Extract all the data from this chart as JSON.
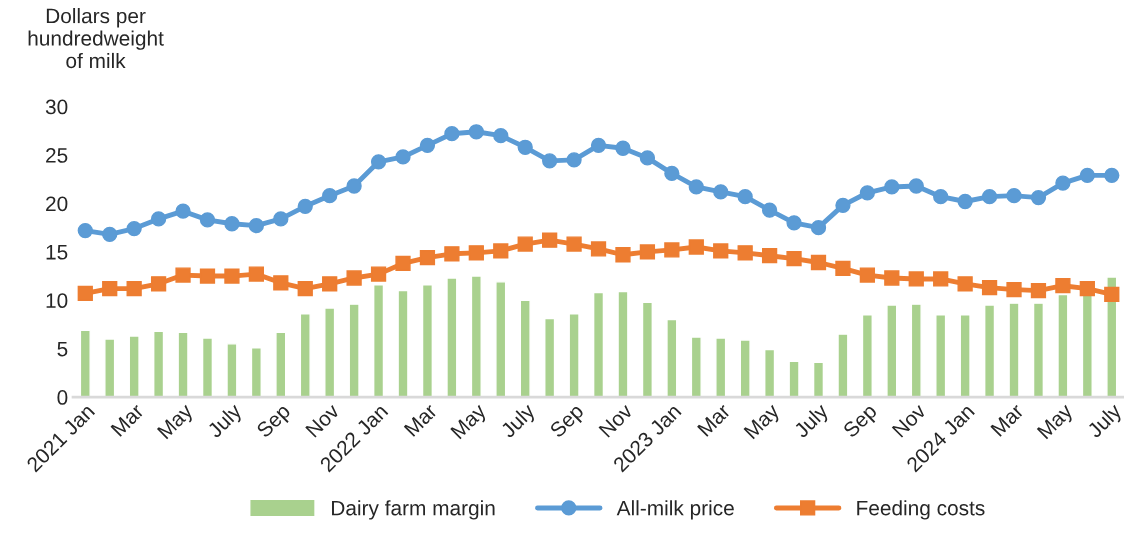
{
  "chart_data": {
    "type": "bar",
    "ylabel": "Dollars per\nhundredweight\nof milk",
    "categories": [
      "2021 Jan",
      null,
      "Mar",
      null,
      "May",
      null,
      "July",
      null,
      "Sep",
      null,
      "Nov",
      null,
      "2022 Jan",
      null,
      "Mar",
      null,
      "May",
      null,
      "July",
      null,
      "Sep",
      null,
      "Nov",
      null,
      "2023 Jan",
      null,
      "Mar",
      null,
      "May",
      null,
      "July",
      null,
      "Sep",
      null,
      "Nov",
      null,
      "2024 Jan",
      null,
      "Mar",
      null,
      "May",
      null,
      "July"
    ],
    "series": [
      {
        "name": "Dairy farm margin",
        "color": "#a9d18e",
        "values": [
          6.9,
          6.0,
          6.3,
          6.8,
          6.7,
          6.1,
          5.5,
          5.1,
          6.7,
          8.6,
          9.2,
          9.6,
          11.6,
          11.0,
          11.6,
          12.3,
          12.5,
          11.9,
          10.0,
          8.1,
          8.6,
          10.8,
          10.9,
          9.8,
          8.0,
          6.2,
          6.1,
          5.9,
          4.9,
          3.7,
          3.6,
          6.5,
          8.5,
          9.5,
          9.6,
          8.5,
          8.5,
          9.5,
          9.7,
          9.7,
          10.6,
          10.8,
          12.4
        ]
      },
      {
        "name": "All-milk price",
        "type": "line",
        "marker": "circle",
        "color": "#5b9bd5",
        "values": [
          17.2,
          16.8,
          17.4,
          18.4,
          19.2,
          18.3,
          17.9,
          17.7,
          18.4,
          19.7,
          20.8,
          21.8,
          24.3,
          24.8,
          26.0,
          27.2,
          27.4,
          27.0,
          25.8,
          24.4,
          24.5,
          26.0,
          25.7,
          24.7,
          23.1,
          21.7,
          21.2,
          20.7,
          19.3,
          18.0,
          17.5,
          19.8,
          21.1,
          21.7,
          21.8,
          20.7,
          20.2,
          20.7,
          20.8,
          20.6,
          22.1,
          22.9,
          22.9
        ]
      },
      {
        "name": "Feeding costs",
        "type": "line",
        "marker": "square",
        "color": "#ed7d31",
        "values": [
          10.7,
          11.2,
          11.2,
          11.7,
          12.6,
          12.5,
          12.5,
          12.7,
          11.8,
          11.2,
          11.7,
          12.3,
          12.7,
          13.8,
          14.4,
          14.8,
          14.9,
          15.1,
          15.8,
          16.2,
          15.8,
          15.3,
          14.7,
          15.0,
          15.2,
          15.5,
          15.1,
          14.9,
          14.6,
          14.3,
          13.9,
          13.3,
          12.6,
          12.3,
          12.2,
          12.2,
          11.7,
          11.3,
          11.1,
          11.0,
          11.5,
          11.2,
          10.6
        ]
      }
    ],
    "ylim": [
      0,
      30
    ],
    "yticks": [
      0,
      5,
      10,
      15,
      20,
      25,
      30
    ],
    "legend": "bottom",
    "grid": false
  }
}
